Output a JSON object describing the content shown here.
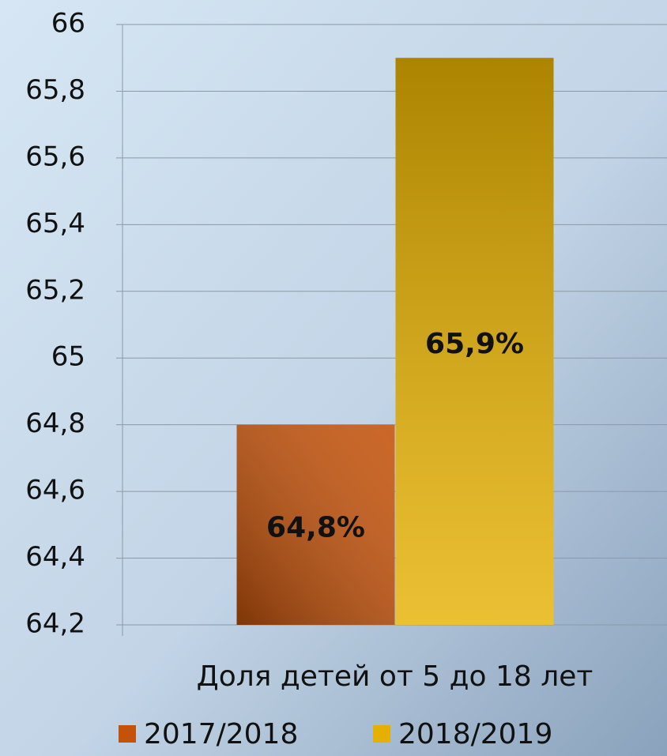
{
  "chart_data": {
    "type": "bar",
    "categories": [
      "Доля детей от 5 до 18 лет"
    ],
    "series": [
      {
        "name": "2017/2018",
        "color": "#c4520a",
        "values": [
          64.8
        ],
        "value_labels": [
          "64,8%"
        ]
      },
      {
        "name": "2018/2019",
        "color": "#e6b000",
        "values": [
          65.9
        ],
        "value_labels": [
          "65,9%"
        ]
      }
    ],
    "ylim": [
      64.2,
      66
    ],
    "yticks": [
      {
        "value": 64.2,
        "label": "64,2"
      },
      {
        "value": 64.4,
        "label": "64,4"
      },
      {
        "value": 64.6,
        "label": "64,6"
      },
      {
        "value": 64.8,
        "label": "64,8"
      },
      65,
      {
        "value": 65.2,
        "label": "65,2"
      },
      {
        "value": 65.4,
        "label": "65,4"
      },
      {
        "value": 65.6,
        "label": "65,6"
      },
      {
        "value": 65.8,
        "label": "65,8"
      },
      66
    ],
    "grid": true,
    "legend": "bottom"
  }
}
